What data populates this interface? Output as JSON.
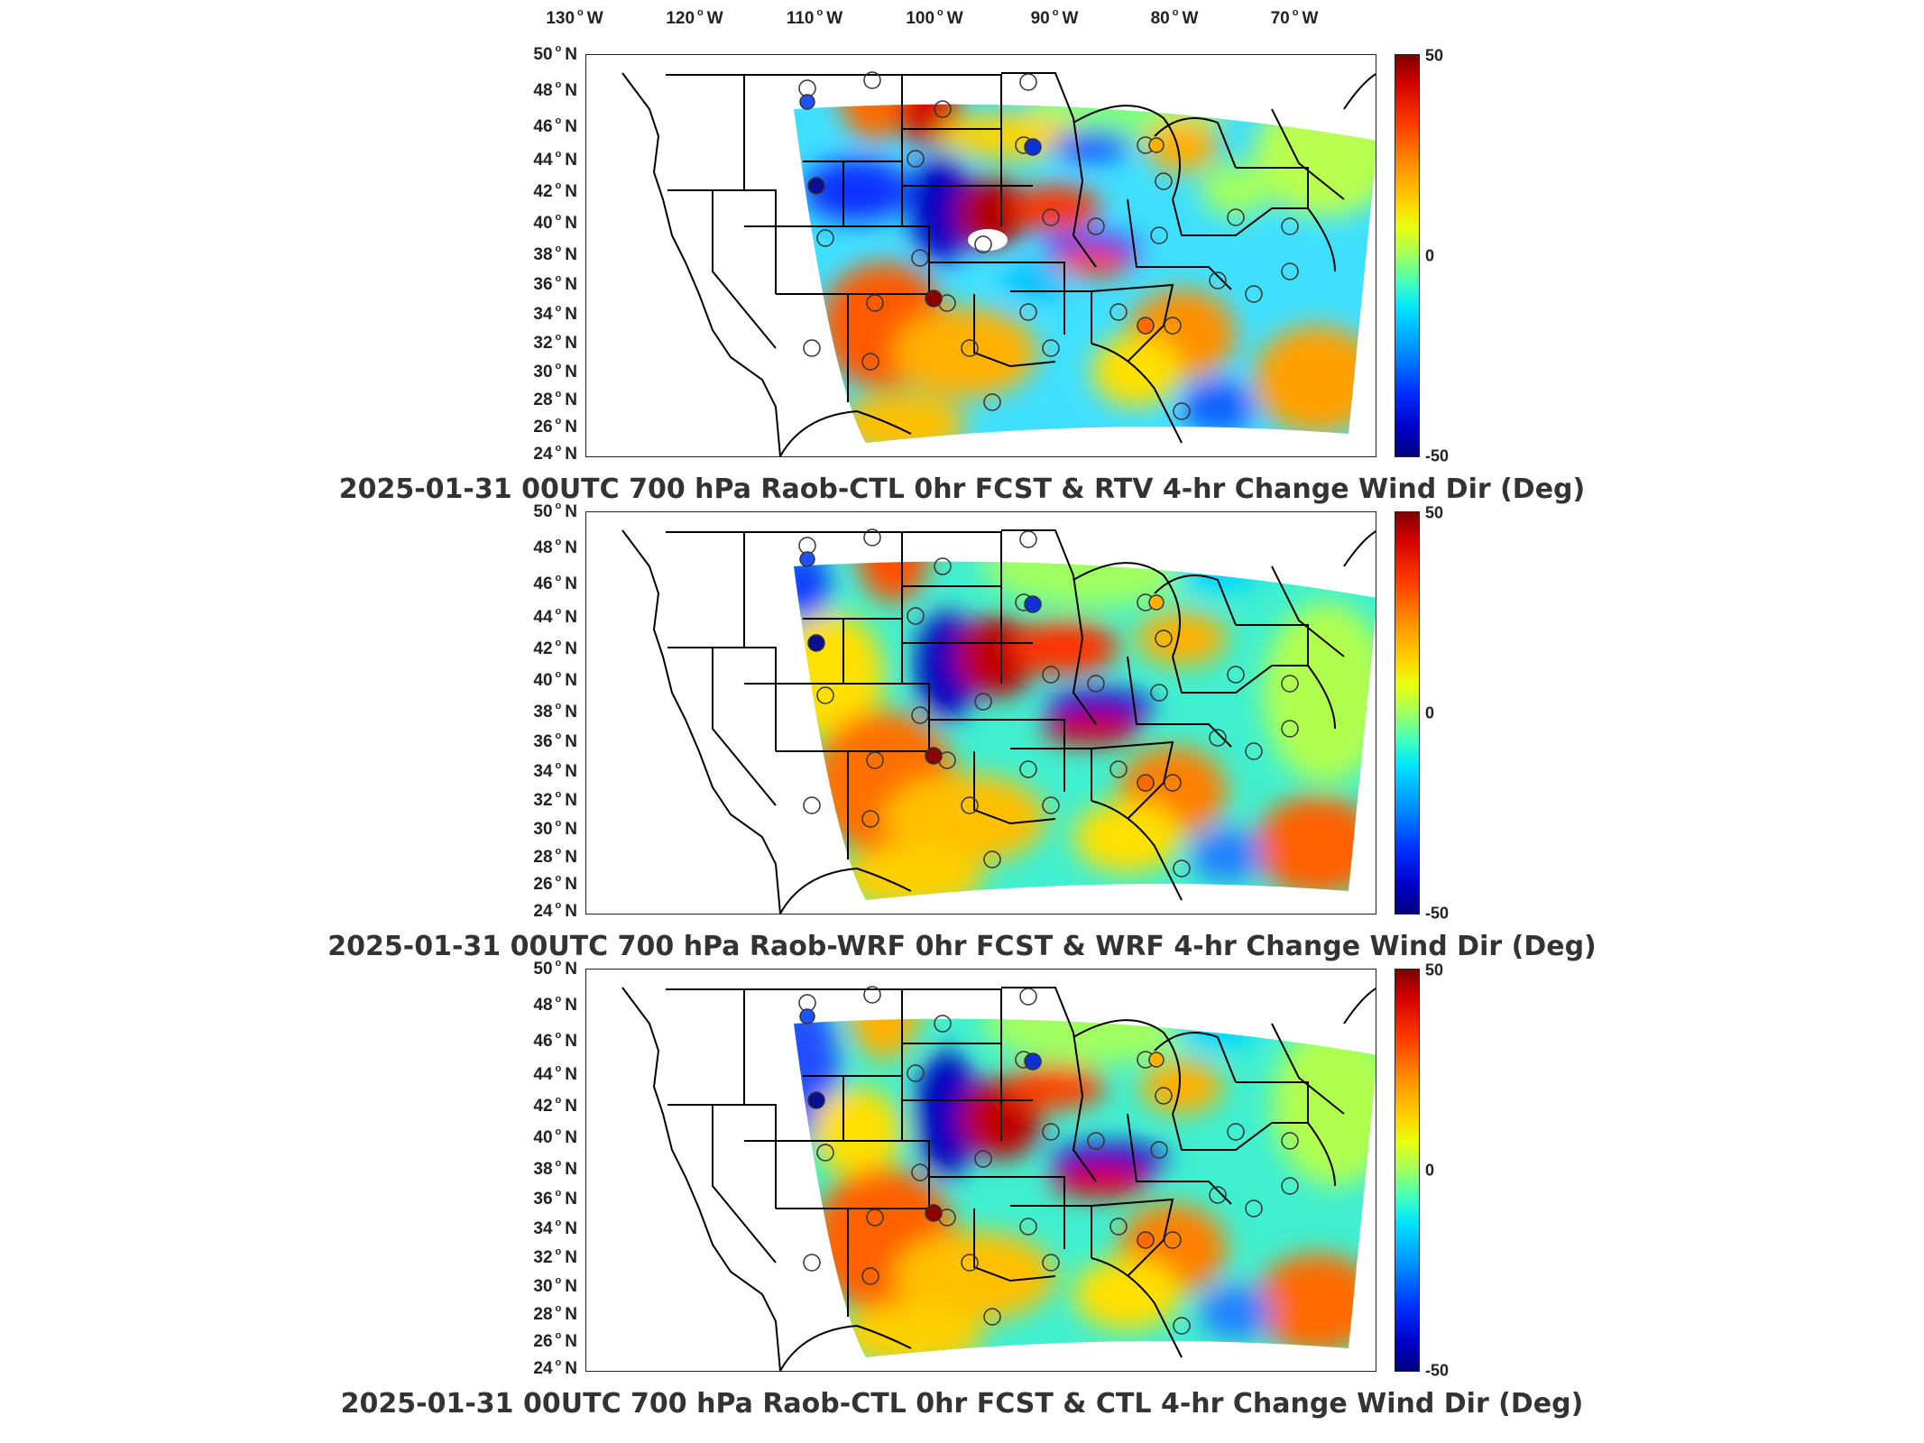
{
  "lon_axis": {
    "labels": [
      "130",
      "120",
      "110",
      "100",
      "90",
      "80",
      "70"
    ],
    "suffix": "W"
  },
  "lat_axis": {
    "labels": [
      "50",
      "48",
      "46",
      "44",
      "42",
      "40",
      "38",
      "36",
      "34",
      "32",
      "30",
      "28",
      "26",
      "24"
    ],
    "suffix": "N"
  },
  "colorbar": {
    "max": "50",
    "mid": "0",
    "min": "-50"
  },
  "panels": [
    {
      "title": "2025-01-31 00UTC 700 hPa Raob-CTL 0hr FCST & RTV 4-hr Change Wind Dir (Deg)"
    },
    {
      "title": "2025-01-31 00UTC 700 hPa Raob-WRF 0hr FCST & WRF 4-hr Change Wind Dir (Deg)"
    },
    {
      "title": "2025-01-31 00UTC 700 hPa Raob-CTL 0hr FCST & CTL 4-hr Change Wind Dir (Deg)"
    }
  ],
  "colors": {
    "scale_max": "#7f0000",
    "scale_hot": "#ff3a00",
    "scale_mid": "#a0ff60",
    "scale_cool": "#00e4ff",
    "scale_min": "#00007f",
    "outline": "#000000"
  }
}
